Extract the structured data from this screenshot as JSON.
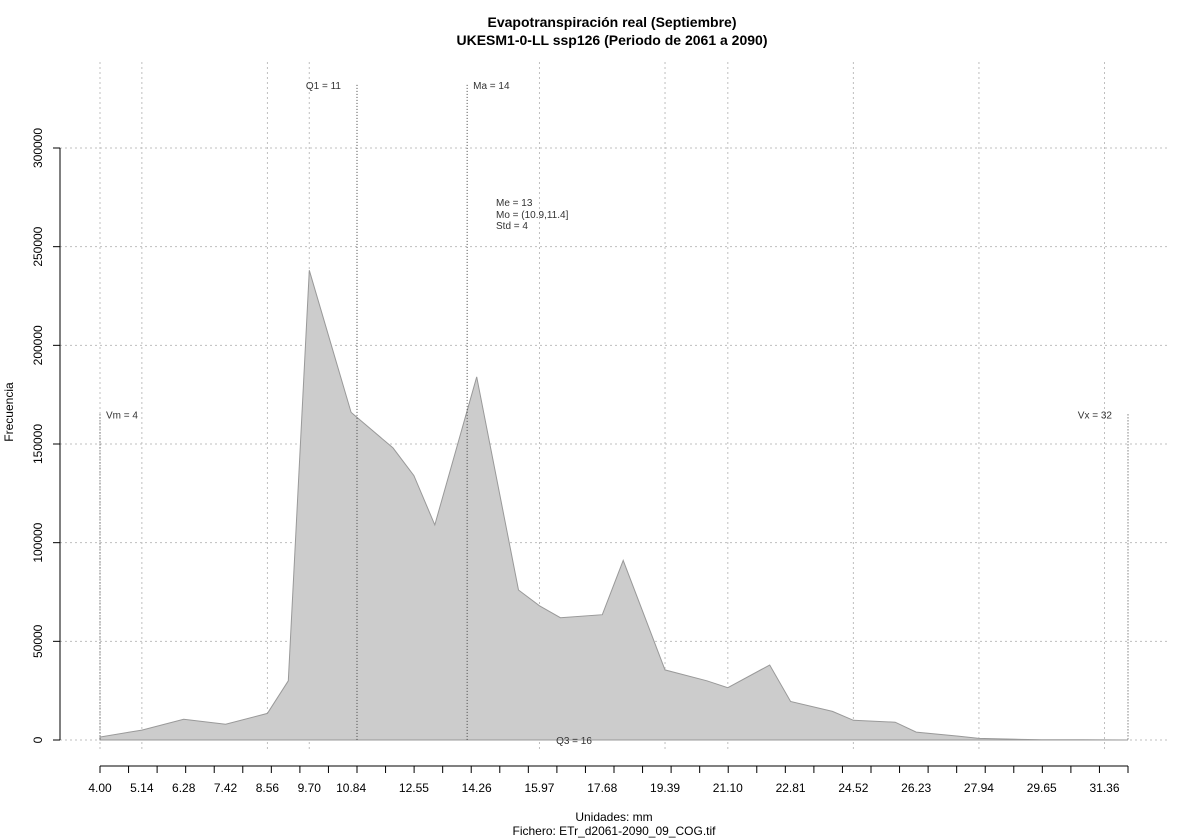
{
  "chart_data": {
    "type": "area",
    "title": "Evapotranspiración real (Septiembre)",
    "subtitle": "UKESM1-0-LL ssp126 (Periodo de 2061 a 2090)",
    "xlabel": "Unidades: mm",
    "ylabel": "Frecuencia",
    "footer": "Fichero: ETr_d2061-2090_09_COG.tif",
    "xlim": [
      4.0,
      32.0
    ],
    "ylim": [
      0,
      300000
    ],
    "x_tick_labels": [
      "4.00",
      "5.14",
      "6.28",
      "7.42",
      "8.56",
      "9.70",
      "10.84",
      "12.55",
      "14.26",
      "15.97",
      "17.68",
      "19.39",
      "21.10",
      "22.81",
      "24.52",
      "26.23",
      "27.94",
      "29.65",
      "31.36"
    ],
    "y_ticks": [
      0,
      50000,
      100000,
      150000,
      200000,
      250000,
      300000
    ],
    "y_tick_labels": [
      "0",
      "50000",
      "100000",
      "150000",
      "200000",
      "250000",
      "300000"
    ],
    "grid": true,
    "fill_color": "#cccccc",
    "line_color": "#999999",
    "series": [
      {
        "x": [
          4.0,
          5.14,
          6.28,
          7.42,
          8.56,
          9.13,
          9.7,
          10.84,
          11.98,
          12.55,
          13.12,
          14.26,
          15.4,
          15.97,
          16.54,
          17.68,
          18.25,
          19.39,
          20.53,
          21.1,
          22.24,
          22.81,
          23.95,
          24.52,
          25.66,
          26.23,
          27.37,
          27.94,
          29.08,
          29.65,
          30.79,
          31.36,
          32.0
        ],
        "y": [
          1500,
          5000,
          10500,
          8000,
          13500,
          30000,
          238000,
          166000,
          148000,
          134000,
          109000,
          184000,
          76000,
          68000,
          62000,
          63500,
          91000,
          35500,
          30000,
          26500,
          38000,
          19500,
          14500,
          10000,
          9000,
          4000,
          2000,
          800,
          300,
          150,
          80,
          30,
          0
        ]
      }
    ],
    "markers": [
      {
        "key": "vm",
        "value": 4.0,
        "label": "Vm = 4",
        "label_side": "right",
        "label_y": 165000
      },
      {
        "key": "q1",
        "value": 11.0,
        "label": "Q1 = 11",
        "label_side": "left",
        "label_y": 332000
      },
      {
        "key": "ma",
        "value": 14.0,
        "label": "Ma = 14",
        "label_side": "right",
        "label_y": 332000
      },
      {
        "key": "vx",
        "value": 32.0,
        "label": "Vx = 32",
        "label_side": "left",
        "label_y": 165000
      }
    ],
    "stats_annotation": [
      "Me = 13",
      "Mo = (10.9,11.4]",
      "Std = 4"
    ],
    "q3_label": "Q3 = 16"
  }
}
